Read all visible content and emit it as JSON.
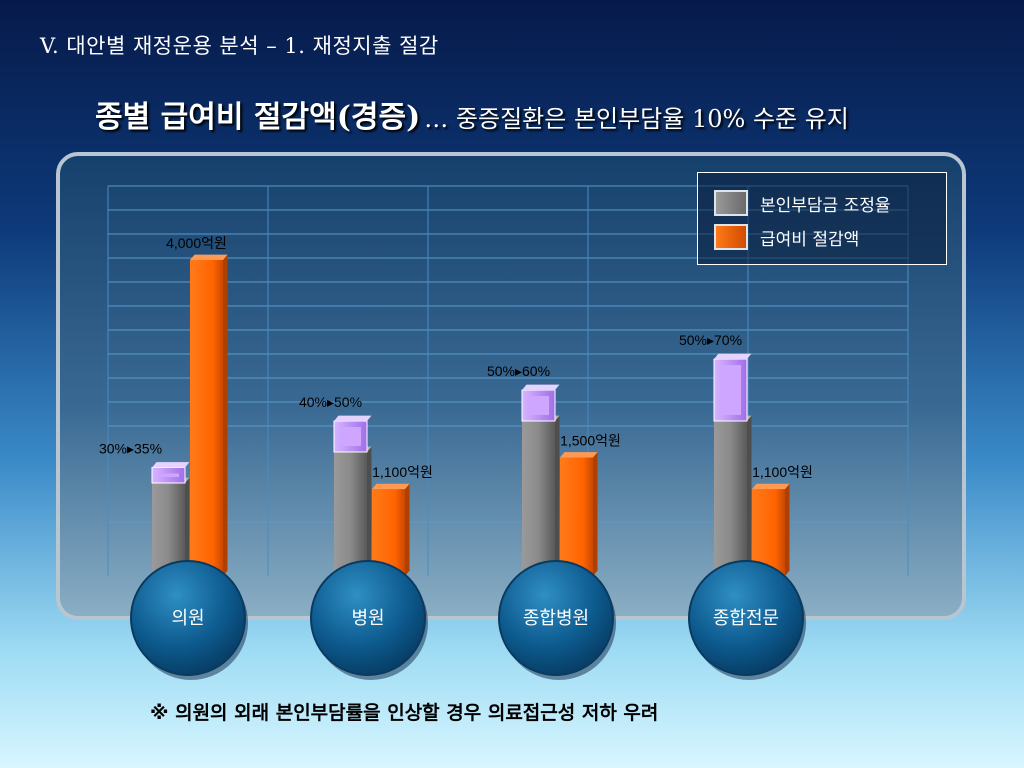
{
  "header": {
    "section": "V. 대안별 재정운용 분석 – 1. 재정지출 절감",
    "title_main": "종별 급여비 절감액(경증)",
    "title_sub": "… 중증질환은 본인부담율 10% 수준 유지"
  },
  "footnote": "※ 의원의 외래 본인부담률을 인상할 경우 의료접근성 저하 우려",
  "colors": {
    "gray": "#7d7d7d",
    "orange": "#ff6a00",
    "purple": "#c9a0ff"
  },
  "chart_data": {
    "type": "bar",
    "categories": [
      "의원",
      "병원",
      "종합병원",
      "종합전문"
    ],
    "series": [
      {
        "name": "본인부담금 조정율",
        "values": [
          30,
          40,
          50,
          50
        ],
        "values_to": [
          35,
          50,
          60,
          70
        ],
        "labels": [
          "30%▸35%",
          "40%▸50%",
          "50%▸60%",
          "50%▸70%"
        ]
      },
      {
        "name": "급여비 절감액",
        "values": [
          4000,
          1100,
          1500,
          1100
        ],
        "labels": [
          "4,000억원",
          "1,100억원",
          "1,500억원",
          "1,100억원"
        ]
      }
    ],
    "grid": true,
    "legend": "top-right"
  }
}
